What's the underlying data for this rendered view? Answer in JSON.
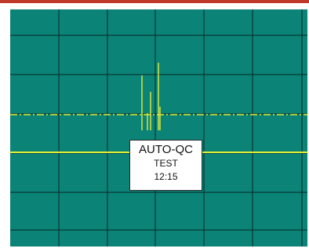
{
  "colors": {
    "top_bar": "#c0392b",
    "background": "#0b8477",
    "grid": "#062624",
    "trace": "#e2ef3a",
    "label_bg": "#ffffff"
  },
  "monitor": {
    "label": {
      "line1": "AUTO-QC",
      "line2": "TEST",
      "line3": "12:15"
    }
  }
}
